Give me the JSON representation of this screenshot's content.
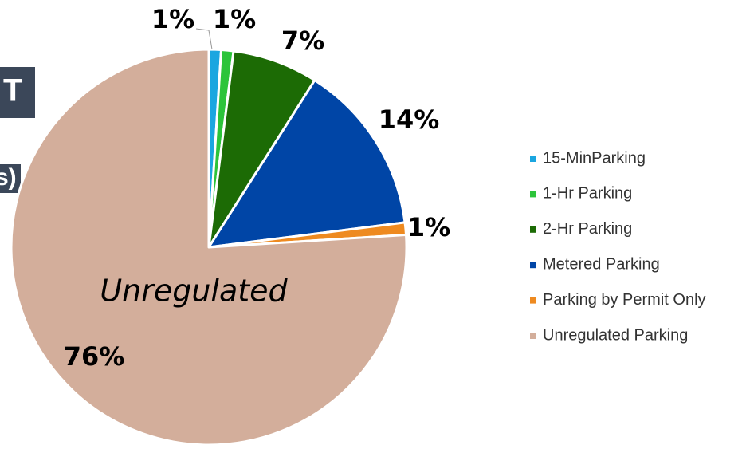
{
  "chart_data": {
    "type": "pie",
    "categories": [
      "15-MinParking",
      "1-Hr Parking",
      "2-Hr Parking",
      "Metered Parking",
      "Parking by Permit Only",
      "Unregulated Parking"
    ],
    "values": [
      1,
      1,
      7,
      14,
      1,
      76
    ],
    "value_labels": [
      "1%",
      "1%",
      "7%",
      "14%",
      "1%",
      "76%"
    ],
    "colors": [
      "#1ba6e0",
      "#2cc43a",
      "#1c6b05",
      "#0045a6",
      "#ee8a20",
      "#d3ae9b"
    ],
    "annotations": [
      "Unregulated"
    ],
    "fragments": [
      "T",
      "s)"
    ],
    "legend": "right"
  }
}
